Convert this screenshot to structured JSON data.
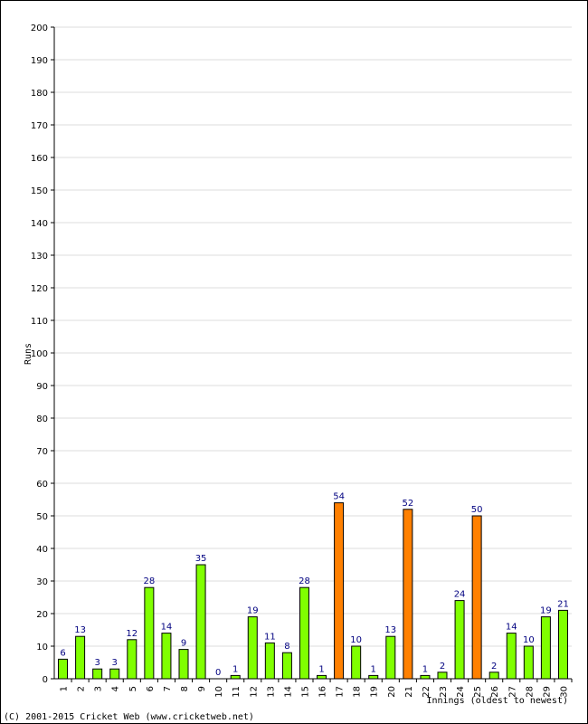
{
  "chart_data": {
    "type": "bar",
    "ylabel": "Runs",
    "xlabel": "Innings (oldest to newest)",
    "ylim": [
      0,
      200
    ],
    "y_ticks": [
      0,
      10,
      20,
      30,
      40,
      50,
      60,
      70,
      80,
      90,
      100,
      110,
      120,
      130,
      140,
      150,
      160,
      170,
      180,
      190,
      200
    ],
    "grid": true,
    "categories": [
      "1",
      "2",
      "3",
      "4",
      "5",
      "6",
      "7",
      "8",
      "9",
      "10",
      "11",
      "12",
      "13",
      "14",
      "15",
      "16",
      "17",
      "18",
      "19",
      "20",
      "21",
      "22",
      "23",
      "24",
      "25",
      "26",
      "27",
      "28",
      "29",
      "30"
    ],
    "values": [
      6,
      13,
      3,
      3,
      12,
      28,
      14,
      9,
      35,
      0,
      1,
      19,
      11,
      8,
      28,
      1,
      54,
      10,
      1,
      13,
      52,
      1,
      2,
      24,
      50,
      2,
      14,
      10,
      19,
      21
    ],
    "highlight_threshold": 50,
    "colors": {
      "bar_normal": "#80ff00",
      "bar_highlight": "#ff8000",
      "bar_stroke": "#000000",
      "value_label": "#000080",
      "grid": "#dddddd"
    }
  },
  "footer": {
    "copyright": "(C) 2001-2015 Cricket Web (www.cricketweb.net)"
  }
}
